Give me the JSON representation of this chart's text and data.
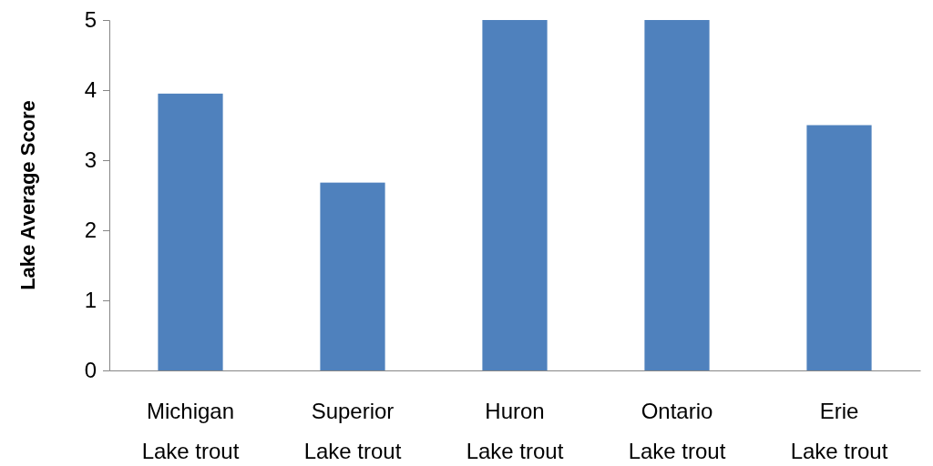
{
  "chart_data": {
    "type": "bar",
    "ylabel": "Lake Average Score",
    "categories": [
      "Michigan Lake trout",
      "Superior Lake trout",
      "Huron Lake trout",
      "Ontario Lake trout",
      "Erie Lake trout"
    ],
    "values": [
      3.95,
      2.68,
      5,
      5,
      3.5
    ],
    "color": "#4f81bd",
    "ylim": [
      0,
      5
    ],
    "yticks": [
      0,
      1,
      2,
      3,
      4,
      5
    ],
    "grid": false
  }
}
